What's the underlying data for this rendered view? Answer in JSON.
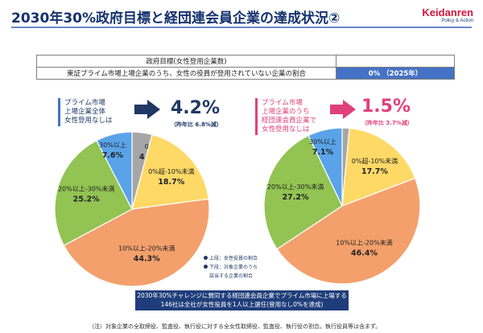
{
  "title": "2030年30%政府目標と経団連会員企業の達成状況②",
  "logo": {
    "name": "Keidanren",
    "tagline": "Policy & Action"
  },
  "table": {
    "header": "政府目標(女性登用企業数)",
    "row_label": "東証プライム市場上場企業のうち、女性の役員が登用されていない企業の割合",
    "row_value": "0% （2025年）"
  },
  "left": {
    "header_lines": [
      "プライム市場",
      "上場企業全体",
      "女性登用なしは"
    ],
    "big": "4.2%",
    "sub": "（昨年比 6.8%減）"
  },
  "right": {
    "header_lines": [
      "プライム市場",
      "上場企業のうち",
      "経団連会員企業で",
      "女性登用なしは"
    ],
    "big": "1.5%",
    "sub": "（昨年比 3.7%減）"
  },
  "legend": {
    "line1": "上段：女性役員の割合",
    "line2": "下段：対象企業のうち",
    "line3": "該当する企業の割合"
  },
  "note": {
    "line1": "2030年30%チャレンジに賛同する経団連会員企業でプライム市場に上場する",
    "line2": "146社は全社が女性役員を1人以上選任(登用なし0%を達成)"
  },
  "footnote": "（注）対象企業の全取締役、監査役、執行役に対する全女性取締役、監査役、執行役の割合。執行役員等は含まず。",
  "colors": {
    "gray": "#a6a6a6",
    "yellow": "#ffd966",
    "orange": "#f4a06c",
    "green": "#92c353",
    "blue": "#5aa3e8",
    "navy": "#1f3864",
    "pink": "#e0407a"
  },
  "chart_data": [
    {
      "type": "pie",
      "categories": [
        "0%",
        "0%超-10%未満",
        "10%以上-20%未満",
        "20%以上-30%未満",
        "30%以上"
      ],
      "values": [
        4.2,
        18.7,
        44.3,
        25.2,
        7.6
      ]
    },
    {
      "type": "pie",
      "categories": [
        "0%",
        "0%超-10%未満",
        "10%以上-20%未満",
        "20%以上-30%未満",
        "30%以上"
      ],
      "values": [
        1.5,
        17.7,
        46.4,
        27.2,
        7.1
      ]
    }
  ]
}
